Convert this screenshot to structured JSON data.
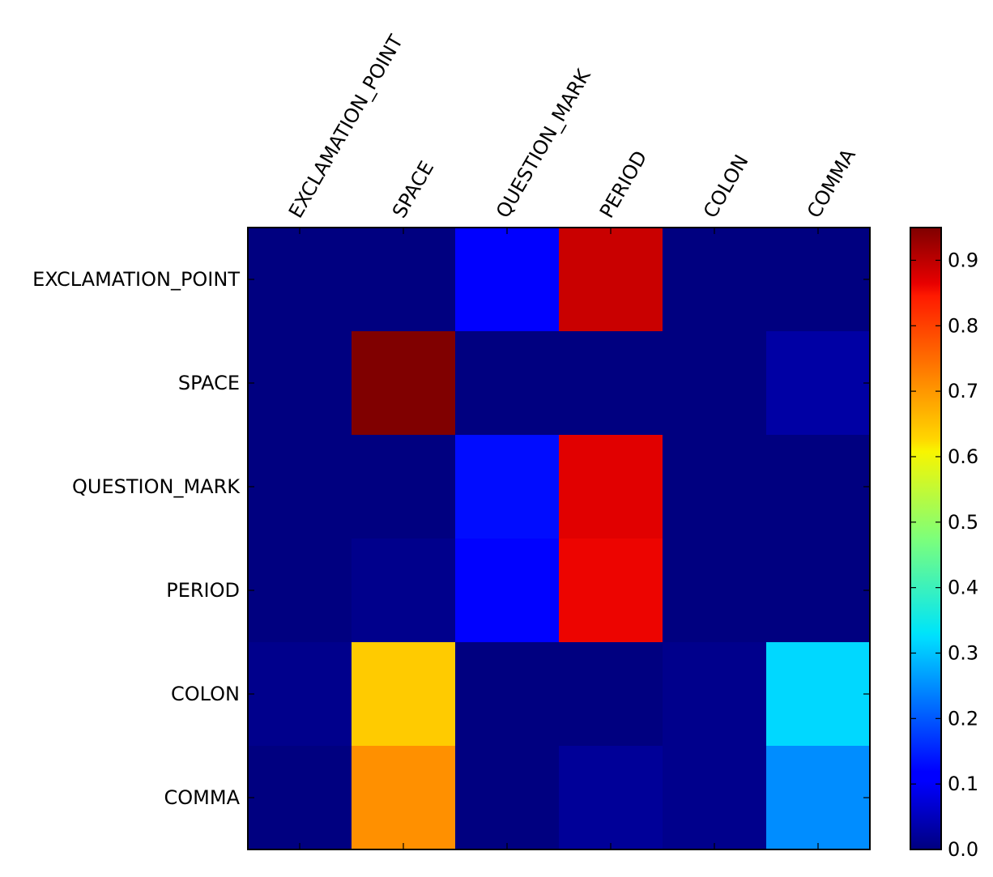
{
  "chart_data": {
    "type": "heatmap",
    "title": "",
    "xlabel": "",
    "ylabel": "",
    "x_categories": [
      "EXCLAMATION_POINT",
      "SPACE",
      "QUESTION_MARK",
      "PERIOD",
      "COLON",
      "COMMA"
    ],
    "y_categories": [
      "EXCLAMATION_POINT",
      "SPACE",
      "QUESTION_MARK",
      "PERIOD",
      "COLON",
      "COMMA"
    ],
    "values": [
      [
        0.0,
        0.0,
        0.11,
        0.89,
        0.0,
        0.0
      ],
      [
        0.0,
        0.95,
        0.0,
        0.0,
        0.0,
        0.03
      ],
      [
        0.0,
        0.0,
        0.13,
        0.87,
        0.0,
        0.0
      ],
      [
        0.0,
        0.01,
        0.12,
        0.86,
        0.0,
        0.0
      ],
      [
        0.01,
        0.66,
        0.0,
        0.0,
        0.01,
        0.32
      ],
      [
        0.0,
        0.72,
        0.0,
        0.02,
        0.01,
        0.25
      ]
    ],
    "colormap": "jet",
    "vmin": 0.0,
    "vmax": 0.95,
    "colorbar": {
      "ticks": [
        0.0,
        0.1,
        0.2,
        0.3,
        0.4,
        0.5,
        0.6,
        0.7,
        0.8,
        0.9
      ],
      "tick_labels": [
        "0.0",
        "0.1",
        "0.2",
        "0.3",
        "0.4",
        "0.5",
        "0.6",
        "0.7",
        "0.8",
        "0.9"
      ]
    },
    "grid": false,
    "x_tick_position": "top",
    "x_tick_rotation": "60deg",
    "legend": "colorbar-right"
  }
}
